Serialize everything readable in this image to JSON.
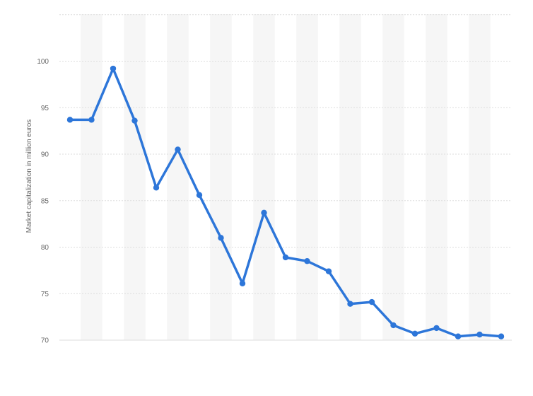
{
  "chart_data": {
    "type": "line",
    "title": "",
    "xlabel": "",
    "ylabel": "Market capitalization in million euros",
    "ylim": [
      70,
      105
    ],
    "yticks": [
      70,
      75,
      80,
      85,
      90,
      95,
      100
    ],
    "grid": true,
    "series": [
      {
        "color": "#2d76d9",
        "values": [
          93.7,
          93.7,
          99.2,
          93.6,
          86.4,
          90.5,
          85.6,
          81.0,
          76.1,
          83.7,
          78.9,
          78.5,
          77.4,
          73.9,
          74.1,
          71.6,
          70.7,
          71.3,
          70.4,
          70.6,
          70.4
        ]
      }
    ]
  },
  "colors": {
    "line": "#2d76d9",
    "band": "#f6f6f6",
    "grid": "#dddddd",
    "text": "#666666"
  }
}
